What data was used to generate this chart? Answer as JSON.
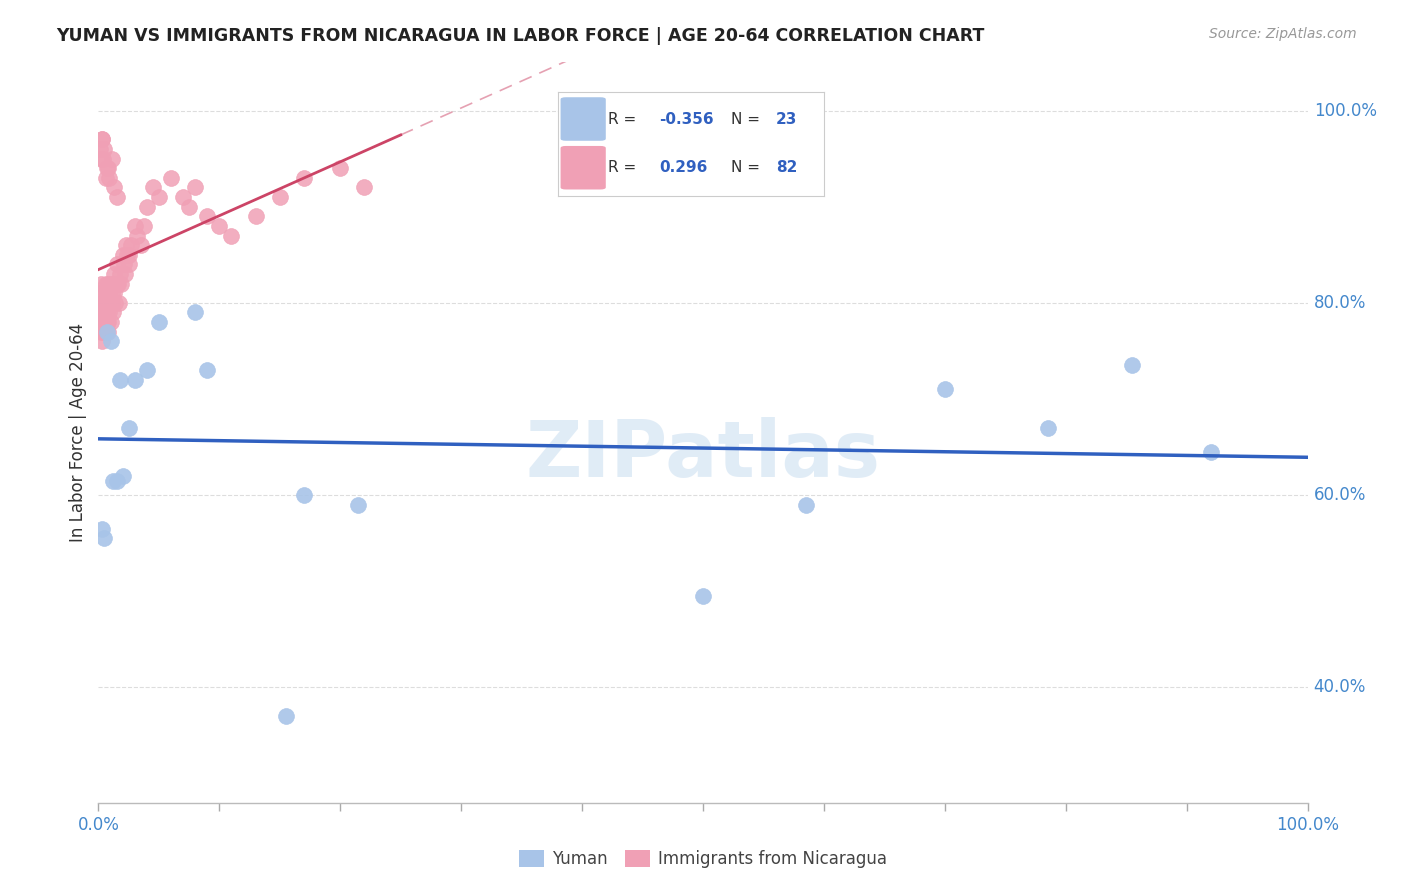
{
  "title": "YUMAN VS IMMIGRANTS FROM NICARAGUA IN LABOR FORCE | AGE 20-64 CORRELATION CHART",
  "source": "Source: ZipAtlas.com",
  "ylabel": "In Labor Force | Age 20-64",
  "legend_blue_label": "Yuman",
  "legend_pink_label": "Immigrants from Nicaragua",
  "blue_color": "#a8c4e8",
  "pink_color": "#f0a0b5",
  "blue_line_color": "#3060c0",
  "pink_line_color": "#cc4466",
  "watermark": "ZIPatlas",
  "bg_color": "#ffffff",
  "grid_color": "#dddddd",
  "blue_x": [
    0.003,
    0.005,
    0.007,
    0.01,
    0.012,
    0.015,
    0.018,
    0.02,
    0.025,
    0.03,
    0.04,
    0.05,
    0.08,
    0.09,
    0.155,
    0.17,
    0.215,
    0.5,
    0.585,
    0.7,
    0.785,
    0.855,
    0.92
  ],
  "blue_y": [
    0.565,
    0.555,
    0.77,
    0.76,
    0.615,
    0.615,
    0.72,
    0.62,
    0.67,
    0.72,
    0.73,
    0.78,
    0.79,
    0.73,
    0.37,
    0.6,
    0.59,
    0.495,
    0.59,
    0.71,
    0.67,
    0.735,
    0.645
  ],
  "pink_x": [
    0.001,
    0.001,
    0.002,
    0.002,
    0.002,
    0.003,
    0.003,
    0.003,
    0.004,
    0.004,
    0.004,
    0.005,
    0.005,
    0.005,
    0.006,
    0.006,
    0.006,
    0.007,
    0.007,
    0.007,
    0.008,
    0.008,
    0.008,
    0.008,
    0.009,
    0.009,
    0.01,
    0.01,
    0.01,
    0.011,
    0.011,
    0.012,
    0.012,
    0.013,
    0.013,
    0.014,
    0.015,
    0.015,
    0.016,
    0.017,
    0.018,
    0.019,
    0.02,
    0.021,
    0.022,
    0.023,
    0.025,
    0.025,
    0.027,
    0.03,
    0.032,
    0.035,
    0.038,
    0.04,
    0.045,
    0.05,
    0.06,
    0.07,
    0.075,
    0.08,
    0.09,
    0.1,
    0.11,
    0.13,
    0.15,
    0.17,
    0.2,
    0.22,
    0.024,
    0.003,
    0.004,
    0.006,
    0.008,
    0.001,
    0.002,
    0.003,
    0.005,
    0.007,
    0.009,
    0.011,
    0.013,
    0.015
  ],
  "pink_y": [
    0.78,
    0.81,
    0.79,
    0.82,
    0.77,
    0.8,
    0.76,
    0.78,
    0.79,
    0.77,
    0.8,
    0.78,
    0.81,
    0.79,
    0.82,
    0.77,
    0.8,
    0.78,
    0.81,
    0.79,
    0.82,
    0.77,
    0.8,
    0.78,
    0.81,
    0.79,
    0.82,
    0.8,
    0.78,
    0.81,
    0.8,
    0.82,
    0.79,
    0.81,
    0.83,
    0.8,
    0.82,
    0.84,
    0.82,
    0.8,
    0.83,
    0.82,
    0.85,
    0.84,
    0.83,
    0.86,
    0.85,
    0.84,
    0.86,
    0.88,
    0.87,
    0.86,
    0.88,
    0.9,
    0.92,
    0.91,
    0.93,
    0.91,
    0.9,
    0.92,
    0.89,
    0.88,
    0.87,
    0.89,
    0.91,
    0.93,
    0.94,
    0.92,
    0.85,
    0.97,
    0.95,
    0.93,
    0.94,
    0.96,
    0.95,
    0.97,
    0.96,
    0.94,
    0.93,
    0.95,
    0.92,
    0.91
  ]
}
